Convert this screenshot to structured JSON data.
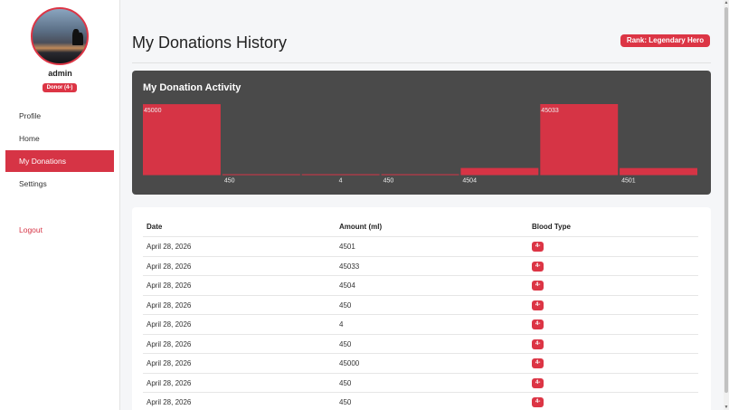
{
  "sidebar": {
    "username": "admin",
    "donor_badge": "Donor (4-)",
    "nav": [
      {
        "label": "Profile"
      },
      {
        "label": "Home"
      },
      {
        "label": "My Donations"
      },
      {
        "label": "Settings"
      }
    ],
    "logout": "Logout"
  },
  "header": {
    "title": "My Donations History",
    "rank": "Rank: Legendary Hero"
  },
  "chart": {
    "title": "My Donation Activity"
  },
  "chart_data": {
    "type": "bar",
    "title": "My Donation Activity",
    "values": [
      45000,
      450,
      4,
      450,
      4504,
      45033,
      4501
    ],
    "ylim": [
      0,
      45033
    ],
    "bar_color": "#d63445"
  },
  "table": {
    "headers": {
      "date": "Date",
      "amount": "Amount (ml)",
      "blood_type": "Blood Type"
    },
    "rows": [
      {
        "date": "April 28, 2026",
        "amount": "4501",
        "blood_type": "4-"
      },
      {
        "date": "April 28, 2026",
        "amount": "45033",
        "blood_type": "4-"
      },
      {
        "date": "April 28, 2026",
        "amount": "4504",
        "blood_type": "4-"
      },
      {
        "date": "April 28, 2026",
        "amount": "450",
        "blood_type": "4-"
      },
      {
        "date": "April 28, 2026",
        "amount": "4",
        "blood_type": "4-"
      },
      {
        "date": "April 28, 2026",
        "amount": "450",
        "blood_type": "4-"
      },
      {
        "date": "April 28, 2026",
        "amount": "45000",
        "blood_type": "4-"
      },
      {
        "date": "April 28, 2026",
        "amount": "450",
        "blood_type": "4-"
      },
      {
        "date": "April 28, 2026",
        "amount": "450",
        "blood_type": "4-"
      }
    ]
  },
  "colors": {
    "accent": "#dc3545",
    "chart_bg": "#4a4a4a"
  }
}
